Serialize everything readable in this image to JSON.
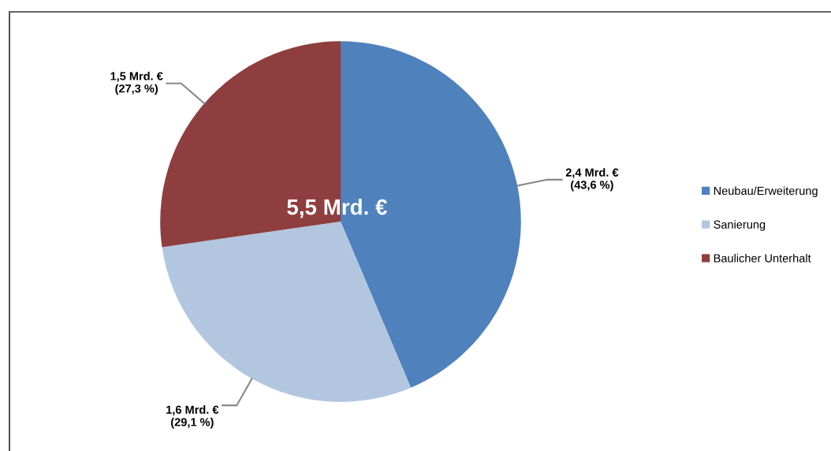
{
  "chart_data": {
    "type": "pie",
    "categories": [
      "Neubau/Erweiterung",
      "Sanierung",
      "Baulicher Unterhalt"
    ],
    "values": [
      2.4,
      1.6,
      1.5
    ],
    "colors": [
      "#4f81bd",
      "#b3c6e0",
      "#8e3e3e"
    ],
    "value_labels": [
      "2,4 Mrd. €\n(43,6 %)",
      "1,6 Mrd. €\n(29,1 %)",
      "1,5 Mrd. €\n(27,3 %)"
    ],
    "annotations": [
      "5,5 Mrd. €"
    ],
    "legend": "right"
  }
}
